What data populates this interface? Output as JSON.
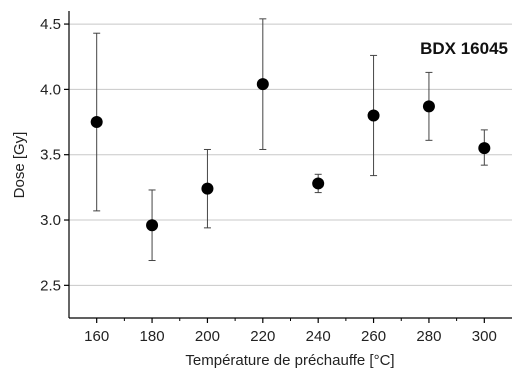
{
  "chart_data": {
    "type": "scatter",
    "title": "",
    "annotation": "BDX 16045",
    "xlabel": "Température de préchauffe [°C]",
    "ylabel": "Dose [Gy]",
    "xlim": [
      150,
      310
    ],
    "ylim": [
      2.25,
      4.6
    ],
    "x_ticks": [
      160,
      180,
      200,
      220,
      240,
      260,
      280,
      300
    ],
    "y_ticks": [
      2.5,
      3.0,
      3.5,
      4.0,
      4.5
    ],
    "y_tick_labels": [
      "2.5",
      "3.0",
      "3.5",
      "4.0",
      "4.5"
    ],
    "grid": "horizontal",
    "legend": "none",
    "series": [
      {
        "points": [
          {
            "x": 160,
            "y": 3.75,
            "err_low": 3.07,
            "err_high": 4.43
          },
          {
            "x": 180,
            "y": 2.96,
            "err_low": 2.69,
            "err_high": 3.23
          },
          {
            "x": 200,
            "y": 3.24,
            "err_low": 2.94,
            "err_high": 3.54
          },
          {
            "x": 220,
            "y": 4.04,
            "err_low": 3.54,
            "err_high": 4.54
          },
          {
            "x": 240,
            "y": 3.28,
            "err_low": 3.21,
            "err_high": 3.35
          },
          {
            "x": 260,
            "y": 3.8,
            "err_low": 3.34,
            "err_high": 4.26
          },
          {
            "x": 280,
            "y": 3.87,
            "err_low": 3.61,
            "err_high": 4.13
          },
          {
            "x": 300,
            "y": 3.55,
            "err_low": 3.42,
            "err_high": 3.69
          }
        ]
      }
    ],
    "colors": {
      "marker": "#000000",
      "errorbar": "#444444",
      "grid": "#c8c8c8",
      "axis": "#000000"
    }
  }
}
